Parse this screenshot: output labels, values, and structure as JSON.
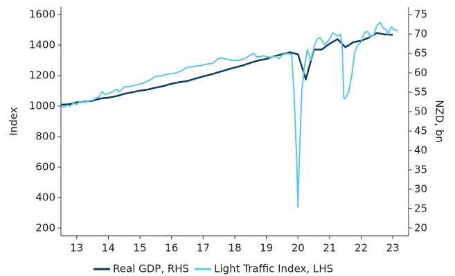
{
  "chart_data": {
    "type": "line",
    "y_label": "Index",
    "y2_label": "NZD, bn",
    "xlim": [
      2013.0,
      2024.0
    ],
    "xticks": [
      {
        "value": 2013.5,
        "label": "13"
      },
      {
        "value": 2014.5,
        "label": "14"
      },
      {
        "value": 2015.5,
        "label": "15"
      },
      {
        "value": 2016.5,
        "label": "16"
      },
      {
        "value": 2017.5,
        "label": "17"
      },
      {
        "value": 2018.5,
        "label": "18"
      },
      {
        "value": 2019.5,
        "label": "19"
      },
      {
        "value": 2020.5,
        "label": "20"
      },
      {
        "value": 2021.5,
        "label": "21"
      },
      {
        "value": 2022.5,
        "label": "22"
      },
      {
        "value": 2023.5,
        "label": "23"
      }
    ],
    "ylim": [
      150,
      1650
    ],
    "yticks": [
      200,
      400,
      600,
      800,
      1000,
      1200,
      1400,
      1600
    ],
    "y2lim": [
      18,
      77
    ],
    "y2ticks": [
      20,
      25,
      30,
      35,
      40,
      45,
      50,
      55,
      60,
      65,
      70,
      75
    ],
    "legend": "bottom",
    "series": [
      {
        "name": "Real GDP, RHS",
        "color": "#0b3b5a",
        "axis": "y2",
        "x": [
          2013.0,
          2013.25,
          2013.5,
          2013.75,
          2014.0,
          2014.25,
          2014.5,
          2014.75,
          2015.0,
          2015.25,
          2015.5,
          2015.75,
          2016.0,
          2016.25,
          2016.5,
          2016.75,
          2017.0,
          2017.25,
          2017.5,
          2017.75,
          2018.0,
          2018.25,
          2018.5,
          2018.75,
          2019.0,
          2019.25,
          2019.5,
          2019.75,
          2020.0,
          2020.25,
          2020.5,
          2020.75,
          2021.0,
          2021.25,
          2021.5,
          2021.75,
          2022.0,
          2022.25,
          2022.5,
          2022.75,
          2023.0,
          2023.25,
          2023.5
        ],
        "values": [
          51.8,
          51.9,
          52.4,
          52.6,
          52.8,
          53.4,
          53.6,
          54.0,
          54.6,
          55.0,
          55.4,
          55.7,
          56.2,
          56.6,
          57.2,
          57.6,
          57.9,
          58.5,
          59.1,
          59.6,
          60.2,
          60.8,
          61.4,
          61.9,
          62.6,
          63.2,
          63.6,
          64.3,
          64.8,
          65.3,
          64.8,
          58.3,
          66.0,
          66.0,
          67.5,
          68.7,
          66.6,
          67.9,
          68.3,
          69.1,
          70.3,
          69.9,
          69.8
        ]
      },
      {
        "name": "Light Traffic Index, LHS",
        "color": "#5bc8e8",
        "axis": "y",
        "x": [
          2013.0,
          2013.1,
          2013.2,
          2013.3,
          2013.4,
          2013.5,
          2013.6,
          2013.75,
          2013.9,
          2014.0,
          2014.2,
          2014.3,
          2014.4,
          2014.6,
          2014.75,
          2014.85,
          2015.0,
          2015.2,
          2015.4,
          2015.6,
          2015.8,
          2016.0,
          2016.2,
          2016.4,
          2016.6,
          2016.8,
          2017.0,
          2017.2,
          2017.4,
          2017.6,
          2017.8,
          2018.0,
          2018.2,
          2018.4,
          2018.6,
          2018.8,
          2019.0,
          2019.1,
          2019.2,
          2019.4,
          2019.6,
          2019.8,
          2019.9,
          2020.0,
          2020.15,
          2020.3,
          2020.37,
          2020.45,
          2020.5,
          2020.55,
          2020.62,
          2020.7,
          2020.8,
          2020.9,
          2021.0,
          2021.1,
          2021.2,
          2021.35,
          2021.5,
          2021.6,
          2021.75,
          2021.85,
          2021.9,
          2021.95,
          2022.0,
          2022.1,
          2022.2,
          2022.3,
          2022.4,
          2022.5,
          2022.6,
          2022.7,
          2022.8,
          2022.9,
          2023.0,
          2023.1,
          2023.2,
          2023.3,
          2023.35,
          2023.45,
          2023.55,
          2023.65
        ],
        "values": [
          1000,
          995,
          1005,
          1000,
          1020,
          1010,
          1030,
          1025,
          1035,
          1040,
          1060,
          1095,
          1075,
          1090,
          1110,
          1095,
          1125,
          1130,
          1140,
          1150,
          1170,
          1195,
          1200,
          1210,
          1215,
          1230,
          1255,
          1260,
          1265,
          1275,
          1280,
          1315,
          1310,
          1300,
          1300,
          1310,
          1335,
          1345,
          1320,
          1330,
          1320,
          1325,
          1310,
          1335,
          1345,
          1340,
          1100,
          700,
          340,
          700,
          1100,
          1250,
          1370,
          1300,
          1380,
          1440,
          1450,
          1400,
          1440,
          1480,
          1460,
          1470,
          1380,
          1050,
          1050,
          1090,
          1200,
          1360,
          1400,
          1420,
          1480,
          1490,
          1450,
          1470,
          1530,
          1550,
          1510,
          1500,
          1470,
          1520,
          1500,
          1495
        ]
      }
    ]
  }
}
